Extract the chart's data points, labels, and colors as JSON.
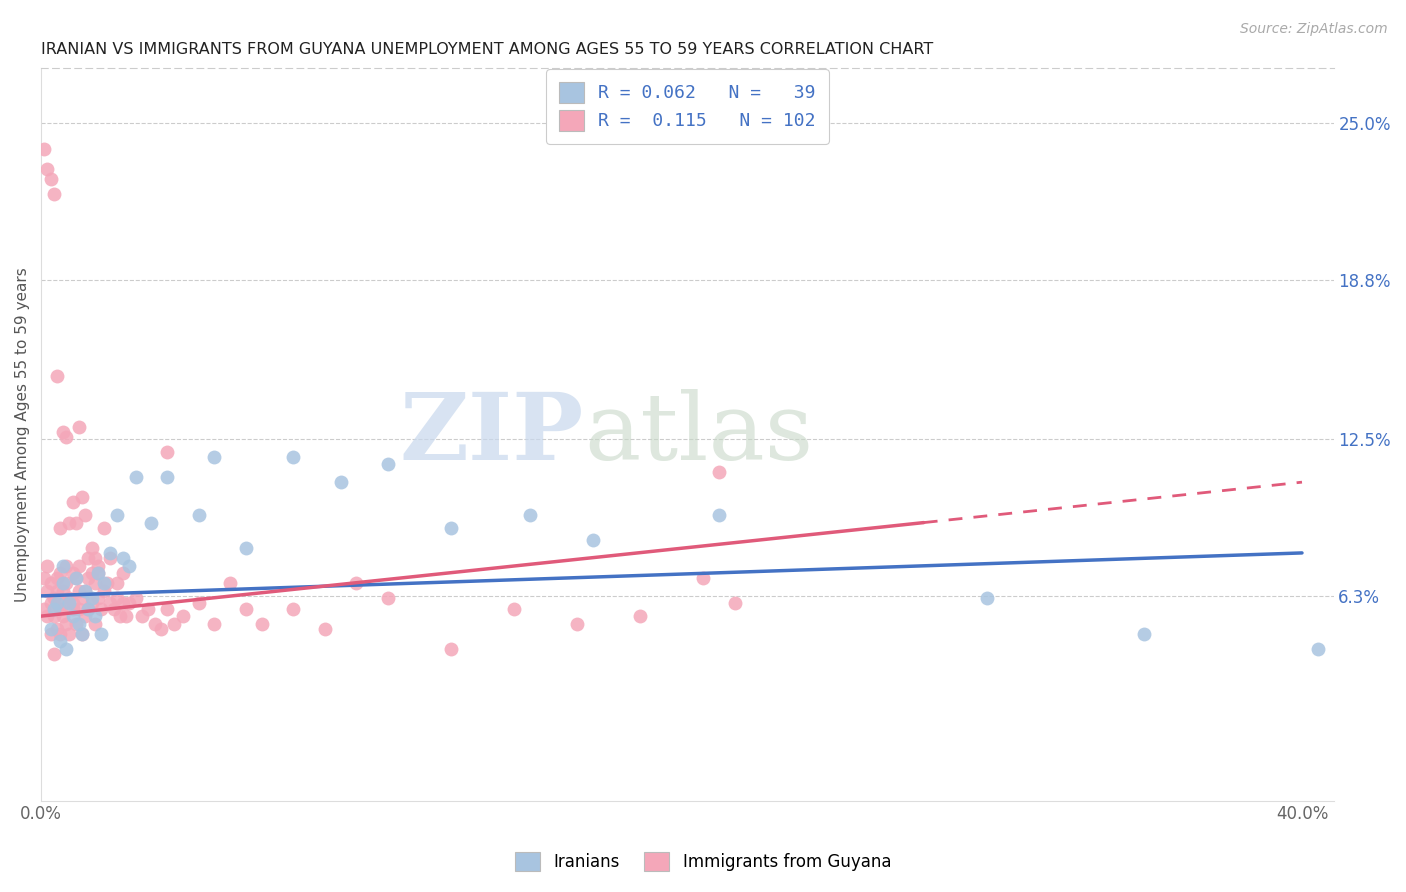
{
  "title": "IRANIAN VS IMMIGRANTS FROM GUYANA UNEMPLOYMENT AMONG AGES 55 TO 59 YEARS CORRELATION CHART",
  "source": "Source: ZipAtlas.com",
  "ylabel": "Unemployment Among Ages 55 to 59 years",
  "xlim": [
    0.0,
    0.41
  ],
  "ylim": [
    -0.018,
    0.272
  ],
  "xticks": [
    0.0,
    0.05,
    0.1,
    0.15,
    0.2,
    0.25,
    0.3,
    0.35,
    0.4
  ],
  "xticklabels": [
    "0.0%",
    "",
    "",
    "",
    "",
    "",
    "",
    "",
    "40.0%"
  ],
  "yticks_right": [
    0.063,
    0.125,
    0.188,
    0.25
  ],
  "ytick_right_labels": [
    "6.3%",
    "12.5%",
    "18.8%",
    "25.0%"
  ],
  "color_iranian": "#a8c4e0",
  "color_guyana": "#f4a7b9",
  "color_line_iranian": "#4472c4",
  "color_line_guyana": "#e05a7a",
  "background_color": "#ffffff",
  "line_iranian_x0": 0.0,
  "line_iranian_y0": 0.063,
  "line_iranian_x1": 0.4,
  "line_iranian_y1": 0.08,
  "line_guyana_solid_x0": 0.0,
  "line_guyana_solid_y0": 0.055,
  "line_guyana_solid_x1": 0.28,
  "line_guyana_solid_y1": 0.092,
  "line_guyana_dash_x0": 0.28,
  "line_guyana_dash_y0": 0.092,
  "line_guyana_dash_x1": 0.4,
  "line_guyana_dash_y1": 0.108,
  "iranians_x": [
    0.003,
    0.004,
    0.005,
    0.006,
    0.007,
    0.007,
    0.008,
    0.009,
    0.01,
    0.011,
    0.012,
    0.013,
    0.014,
    0.015,
    0.016,
    0.017,
    0.018,
    0.019,
    0.02,
    0.022,
    0.024,
    0.026,
    0.028,
    0.03,
    0.035,
    0.04,
    0.05,
    0.055,
    0.065,
    0.08,
    0.095,
    0.11,
    0.13,
    0.155,
    0.175,
    0.215,
    0.3,
    0.35,
    0.405
  ],
  "iranians_y": [
    0.05,
    0.058,
    0.06,
    0.045,
    0.068,
    0.075,
    0.042,
    0.06,
    0.055,
    0.07,
    0.052,
    0.048,
    0.065,
    0.058,
    0.062,
    0.055,
    0.072,
    0.048,
    0.068,
    0.08,
    0.095,
    0.078,
    0.075,
    0.11,
    0.092,
    0.11,
    0.095,
    0.118,
    0.082,
    0.118,
    0.108,
    0.115,
    0.09,
    0.095,
    0.085,
    0.095,
    0.062,
    0.048,
    0.042
  ],
  "guyana_x": [
    0.001,
    0.001,
    0.002,
    0.002,
    0.002,
    0.003,
    0.003,
    0.003,
    0.004,
    0.004,
    0.004,
    0.005,
    0.005,
    0.005,
    0.006,
    0.006,
    0.006,
    0.007,
    0.007,
    0.007,
    0.008,
    0.008,
    0.008,
    0.009,
    0.009,
    0.01,
    0.01,
    0.01,
    0.011,
    0.011,
    0.012,
    0.012,
    0.012,
    0.013,
    0.013,
    0.014,
    0.014,
    0.015,
    0.015,
    0.016,
    0.016,
    0.017,
    0.017,
    0.018,
    0.018,
    0.019,
    0.02,
    0.021,
    0.022,
    0.023,
    0.024,
    0.025,
    0.026,
    0.027,
    0.028,
    0.03,
    0.032,
    0.034,
    0.036,
    0.038,
    0.04,
    0.042,
    0.045,
    0.05,
    0.055,
    0.06,
    0.065,
    0.07,
    0.08,
    0.09,
    0.1,
    0.11,
    0.13,
    0.15,
    0.17,
    0.19,
    0.21,
    0.22,
    0.001,
    0.002,
    0.003,
    0.004,
    0.005,
    0.006,
    0.007,
    0.008,
    0.009,
    0.01,
    0.011,
    0.012,
    0.013,
    0.014,
    0.015,
    0.016,
    0.017,
    0.018,
    0.02,
    0.022,
    0.024,
    0.026,
    0.04,
    0.215
  ],
  "guyana_y": [
    0.07,
    0.058,
    0.075,
    0.055,
    0.065,
    0.06,
    0.068,
    0.048,
    0.062,
    0.055,
    0.04,
    0.065,
    0.05,
    0.07,
    0.058,
    0.072,
    0.048,
    0.055,
    0.065,
    0.06,
    0.068,
    0.052,
    0.075,
    0.062,
    0.048,
    0.058,
    0.072,
    0.06,
    0.052,
    0.07,
    0.065,
    0.058,
    0.075,
    0.062,
    0.048,
    0.065,
    0.055,
    0.07,
    0.058,
    0.06,
    0.072,
    0.052,
    0.068,
    0.062,
    0.075,
    0.058,
    0.065,
    0.068,
    0.06,
    0.058,
    0.062,
    0.055,
    0.06,
    0.055,
    0.06,
    0.062,
    0.055,
    0.058,
    0.052,
    0.05,
    0.058,
    0.052,
    0.055,
    0.06,
    0.052,
    0.068,
    0.058,
    0.052,
    0.058,
    0.05,
    0.068,
    0.062,
    0.042,
    0.058,
    0.052,
    0.055,
    0.07,
    0.06,
    0.24,
    0.232,
    0.228,
    0.222,
    0.15,
    0.09,
    0.128,
    0.126,
    0.092,
    0.1,
    0.092,
    0.13,
    0.102,
    0.095,
    0.078,
    0.082,
    0.078,
    0.072,
    0.09,
    0.078,
    0.068,
    0.072,
    0.12,
    0.112
  ]
}
